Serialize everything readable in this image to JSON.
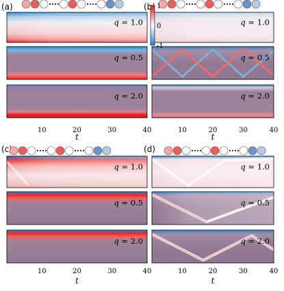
{
  "panel_labels": [
    "(a)",
    "(b)",
    "(c)",
    "(d)"
  ],
  "q_values": [
    "1.0",
    "0.5",
    "2.0"
  ],
  "q_symbol": "q",
  "axis_t_label": "t",
  "colorbar": {
    "ticks": [
      "1",
      "0",
      "-1"
    ],
    "max": 1,
    "min": -1
  },
  "colors": {
    "positive": "#e8202a",
    "neutral": "#ffffff",
    "negative": "#2e86c8",
    "cluster": "#8a8aa8"
  },
  "chart_data": [
    {
      "type": "heatmap",
      "panel": "(a)",
      "xlabel": "",
      "x_ticks": [
        10,
        20,
        30,
        40
      ],
      "xlim": [
        0,
        40
      ],
      "chain_pattern": [
        "red-light",
        "red",
        "white",
        "dots",
        "white",
        "red",
        "white",
        "dots",
        "white",
        "blue",
        "blue-light"
      ],
      "rows": [
        {
          "q": "1.0",
          "pattern": "edge-blue-top-red-bottom-fading"
        },
        {
          "q": "0.5",
          "pattern": "static-blue-top-red-bottom"
        },
        {
          "q": "2.0",
          "pattern": "static-red-bottom"
        }
      ]
    },
    {
      "type": "heatmap",
      "panel": "(b)",
      "xlabel": "t",
      "x_ticks": [
        10,
        20,
        30,
        40
      ],
      "xlim": [
        0,
        40
      ],
      "chain_pattern": [
        "red-light",
        "red",
        "white",
        "dots",
        "white",
        "red",
        "white",
        "dots",
        "white",
        "blue",
        "blue-light"
      ],
      "rows": [
        {
          "q": "1.0",
          "pattern": "fast-diffuse"
        },
        {
          "q": "0.5",
          "pattern": "bouncing-wave"
        },
        {
          "q": "2.0",
          "pattern": "static-stripes"
        }
      ]
    },
    {
      "type": "heatmap",
      "panel": "(c)",
      "xlabel": "",
      "x_ticks": [
        10,
        20,
        30,
        40
      ],
      "xlim": [
        0,
        40
      ],
      "chain_pattern": [
        "red-light",
        "red",
        "white",
        "dots",
        "white",
        "red",
        "white",
        "dots",
        "white",
        "blue",
        "blue-light"
      ],
      "rows": [
        {
          "q": "1.0",
          "pattern": "edge-red-top-blue-bottom-fading"
        },
        {
          "q": "0.5",
          "pattern": "static-red-top"
        },
        {
          "q": "2.0",
          "pattern": "static-red-top"
        }
      ]
    },
    {
      "type": "heatmap",
      "panel": "(d)",
      "xlabel": "t",
      "x_ticks": [
        10,
        20,
        30,
        40
      ],
      "xlim": [
        0,
        40
      ],
      "chain_pattern": [
        "red-light",
        "red",
        "white",
        "dots",
        "white",
        "red",
        "white",
        "dots",
        "white",
        "blue",
        "blue-light"
      ],
      "rows": [
        {
          "q": "1.0",
          "pattern": "single-dip-fast"
        },
        {
          "q": "0.5",
          "pattern": "single-dip-slow"
        },
        {
          "q": "2.0",
          "pattern": "bouncing-wave-slow"
        }
      ]
    }
  ]
}
